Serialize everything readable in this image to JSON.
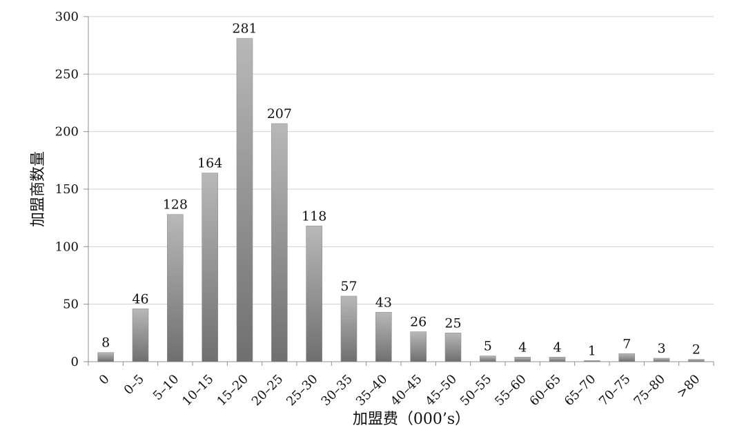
{
  "chart_data": {
    "type": "bar",
    "title": "",
    "xlabel": "加盟费（000’s）",
    "ylabel": "加盟商数量",
    "categories": [
      "0",
      "0–5",
      "5–10",
      "10–15",
      "15–20",
      "20–25",
      "25–30",
      "30–35",
      "35–40",
      "40–45",
      "45–50",
      "50–55",
      "55–60",
      "60–65",
      "65–70",
      "70–75",
      "75–80",
      ">80"
    ],
    "values": [
      8,
      46,
      128,
      164,
      281,
      207,
      118,
      57,
      43,
      26,
      25,
      5,
      4,
      4,
      1,
      7,
      3,
      2
    ],
    "ylim": [
      0,
      300
    ],
    "yticks": [
      0,
      50,
      100,
      150,
      200,
      250,
      300
    ],
    "grid": true,
    "legend": "none",
    "colors": {
      "bar_top": "#b8b8b8",
      "bar_bottom": "#6f6f6f",
      "axis": "#8f8f8f",
      "grid": "#cfcfcf",
      "text": "#111111"
    }
  }
}
